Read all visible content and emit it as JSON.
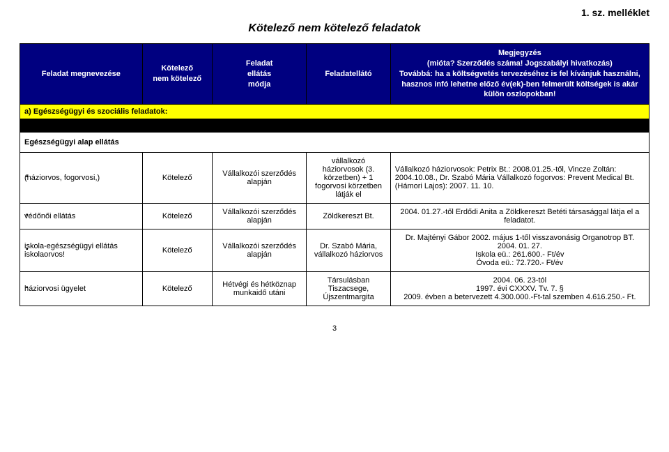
{
  "attachment_label": "1. sz. melléklet",
  "title": "Kötelező nem kötelező feladatok",
  "columns": {
    "c1": "Feladat megnevezése",
    "c2": "Kötelező\nnem kötelező",
    "c3": "Feladat\nellátás\nmódja",
    "c4": "Feladatellátó",
    "c5_title": "Megjegyzés",
    "c5_line1": "(mióta? Szerződés száma! Jogszabályi hivatkozás)",
    "c5_line2": "Továbbá: ha a költségvetés tervezéséhez is fel kívánjuk használni, hasznos infó lehetne előző év(ek)-ben felmerült költségek is akár külön oszlopokban!"
  },
  "section_a": "a) Egészségügyi és szociális feladatok:",
  "subhead": "Egészségügyi alap ellátás",
  "rows": [
    {
      "name": "(háziorvos, fogorvosi,)",
      "kot": "Kötelező",
      "mod": "Vállalkozói szerződés alapján",
      "ellato": "vállalkozó háziorvosok (3. körzetben) + 1 fogorvosi körzetben látják el",
      "meg": "Vállalkozó háziorvosok: Petrix Bt.: 2008.01.25.-től, Vincze Zoltán: 2004.10.08., Dr. Szabó Mária Vállalkozó fogorvos: Prevent Medical Bt. (Hámori Lajos): 2007. 11. 10."
    },
    {
      "name": "védőnői ellátás",
      "kot": "Kötelező",
      "mod": "Vállalkozói szerződés alapján",
      "ellato": "Zöldkereszt Bt.",
      "meg": "2004. 01.27.-től Erdődi Anita a Zöldkereszt Betéti társasággal látja el a feladatot."
    },
    {
      "name": "iskola-egészségügyi ellátás iskolaorvos!",
      "kot": "Kötelező",
      "mod": "Vállalkozói szerződés alapján",
      "ellato": "Dr. Szabó Mária, vállalkozó háziorvos",
      "meg": "Dr. Majtényi Gábor 2002. május 1-től visszavonásig Organotrop BT. 2004. 01. 27.\nIskola eü.: 261.600.- Ft/év\nÓvoda eü.: 72.720.- Ft/év"
    },
    {
      "name": "háziorvosi ügyelet",
      "kot": "Kötelező",
      "mod": "Hétvégi és hétköznap munkaidő utáni",
      "ellato": "Társulásban Tiszacsege, Újszentmargita",
      "meg": "2004. 06. 23-tól\n1997. évi CXXXV. Tv. 7. §\n2009. évben a betervezett 4.300.000.-Ft-tal szemben 4.616.250.- Ft."
    }
  ],
  "page_number": "3"
}
